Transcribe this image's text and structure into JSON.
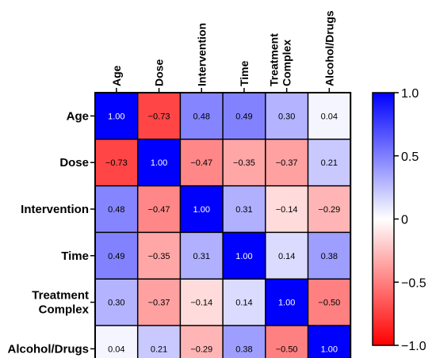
{
  "chart_data": {
    "type": "heatmap",
    "variables": [
      [
        "Age"
      ],
      [
        "Dose"
      ],
      [
        "Intervention"
      ],
      [
        "Time"
      ],
      [
        "Treatment",
        "Complex"
      ],
      [
        "Alcohol/Drugs"
      ]
    ],
    "matrix": [
      [
        1.0,
        -0.73,
        0.48,
        0.49,
        0.3,
        0.04
      ],
      [
        -0.73,
        1.0,
        -0.47,
        -0.35,
        -0.37,
        0.21
      ],
      [
        0.48,
        -0.47,
        1.0,
        0.31,
        -0.14,
        -0.29
      ],
      [
        0.49,
        -0.35,
        0.31,
        1.0,
        0.14,
        0.38
      ],
      [
        0.3,
        -0.37,
        -0.14,
        0.14,
        1.0,
        -0.5
      ],
      [
        0.04,
        0.21,
        -0.29,
        0.38,
        -0.5,
        1.0
      ]
    ],
    "value_labels": [
      [
        "1.00",
        "−0.73",
        "0.48",
        "0.49",
        "0.30",
        "0.04"
      ],
      [
        "−0.73",
        "1.00",
        "−0.47",
        "−0.35",
        "−0.37",
        "0.21"
      ],
      [
        "0.48",
        "−0.47",
        "1.00",
        "0.31",
        "−0.14",
        "−0.29"
      ],
      [
        "0.49",
        "−0.35",
        "0.31",
        "1.00",
        "0.14",
        "0.38"
      ],
      [
        "0.30",
        "−0.37",
        "−0.14",
        "0.14",
        "1.00",
        "−0.50"
      ],
      [
        "0.04",
        "0.21",
        "−0.29",
        "0.38",
        "−0.50",
        "1.00"
      ]
    ],
    "colorbar": {
      "range": [
        -1.0,
        1.0
      ],
      "ticks": [
        1.0,
        0.5,
        0,
        -0.5,
        -1.0
      ],
      "tick_labels": [
        "1.0",
        "0.5",
        "0",
        "−0.5",
        "−1.0"
      ],
      "colors": {
        "high": "#0000ff",
        "mid": "#ffffff",
        "low": "#ff0000"
      }
    },
    "grid": true,
    "legend": "right"
  }
}
